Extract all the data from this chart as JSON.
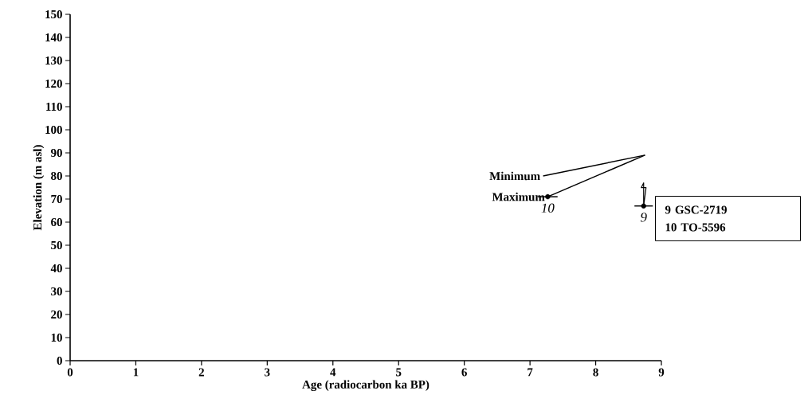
{
  "chart_data": {
    "type": "line",
    "xlabel": "Age (radiocarbon ka BP)",
    "ylabel": "Elevation (m asl)",
    "xlim": [
      0,
      9
    ],
    "ylim": [
      0,
      150
    ],
    "xticks": [
      0,
      1,
      2,
      3,
      4,
      5,
      6,
      7,
      8,
      9
    ],
    "yticks": [
      0,
      10,
      20,
      30,
      40,
      50,
      60,
      70,
      80,
      90,
      100,
      110,
      120,
      130,
      140,
      150
    ],
    "series": [
      {
        "name": "Minimum",
        "color": "#000000",
        "x": [
          7.2,
          8.75
        ],
        "values": [
          80,
          89
        ]
      },
      {
        "name": "Maximum",
        "color": "#000000",
        "x": [
          7.27,
          8.75
        ],
        "values": [
          71,
          89
        ]
      },
      {
        "type": "scatter",
        "color": "#000000",
        "marker": "circle",
        "x": [
          7.27,
          8.73
        ],
        "values": [
          71,
          67
        ],
        "xerrors": [
          0.15,
          0.14
        ],
        "errors": [
          null,
          [
            67,
            77
          ]
        ]
      }
    ],
    "annotations": [
      {
        "text": "10",
        "x": 7.27,
        "y": 71
      },
      {
        "text": "9",
        "x": 8.73,
        "y": 67
      },
      "9   GSC-2719",
      "10 TO-5596"
    ]
  }
}
